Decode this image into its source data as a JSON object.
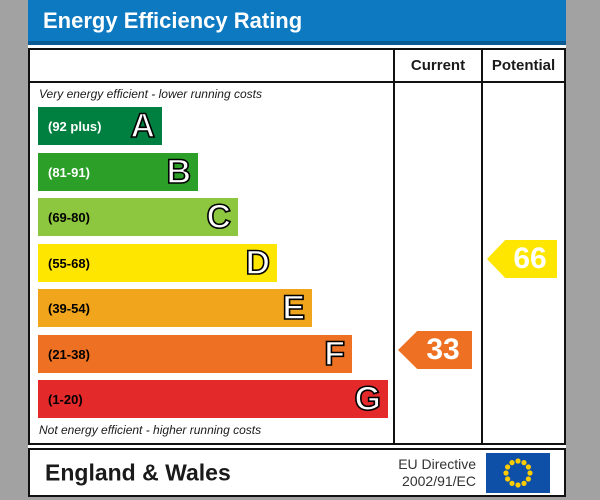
{
  "header": {
    "title": "Energy Efficiency Rating"
  },
  "columns": {
    "current": "Current",
    "potential": "Potential"
  },
  "captions": {
    "top": "Very energy efficient - lower running costs",
    "bottom": "Not energy efficient - higher running costs"
  },
  "footer": {
    "region": "England & Wales",
    "directive_line1": "EU Directive",
    "directive_line2": "2002/91/EC",
    "flag_icon": "eu-flag-icon"
  },
  "colors": {
    "title_bar_blue": "#0c79c0",
    "page_background_gray": "#a2a2a2",
    "eu_flag_blue": "#0e4fa8",
    "eu_flag_star_yellow": "#ffcc00"
  },
  "chart_data": {
    "type": "epc_energy_rating_bands",
    "title": "Energy Efficiency Rating",
    "scale": [
      1,
      100
    ],
    "annotation_top": "Very energy efficient - lower running costs",
    "annotation_bottom": "Not energy efficient - higher running costs",
    "bands": [
      {
        "letter": "A",
        "range_label": "(92 plus)",
        "min": 92,
        "max": 100,
        "color": "#008040",
        "label_color": "#ffffff"
      },
      {
        "letter": "B",
        "range_label": "(81-91)",
        "min": 81,
        "max": 91,
        "color": "#2c9f29",
        "label_color": "#ffffff"
      },
      {
        "letter": "C",
        "range_label": "(69-80)",
        "min": 69,
        "max": 80,
        "color": "#8dc63f",
        "label_color": "#000000"
      },
      {
        "letter": "D",
        "range_label": "(55-68)",
        "min": 55,
        "max": 68,
        "color": "#ffe600",
        "label_color": "#000000"
      },
      {
        "letter": "E",
        "range_label": "(39-54)",
        "min": 39,
        "max": 54,
        "color": "#f0a51d",
        "label_color": "#000000"
      },
      {
        "letter": "F",
        "range_label": "(21-38)",
        "min": 21,
        "max": 38,
        "color": "#ee7123",
        "label_color": "#000000"
      },
      {
        "letter": "G",
        "range_label": "(1-20)",
        "min": 1,
        "max": 20,
        "color": "#e4292b",
        "label_color": "#000000"
      }
    ],
    "current": {
      "value": 33,
      "band": "F",
      "color": "#ee7123"
    },
    "potential": {
      "value": 66,
      "band": "D",
      "color": "#ffe600"
    }
  }
}
